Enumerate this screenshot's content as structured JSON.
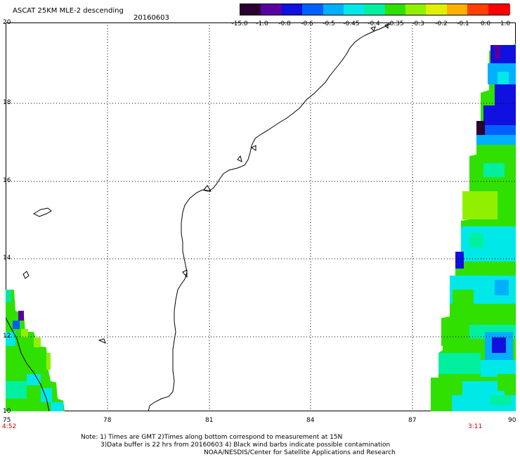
{
  "header": {
    "title": "ASCAT 25KM MLE-2 descending",
    "date": "20160603"
  },
  "colorbar": {
    "labels": [
      "-15.0",
      "-1.0",
      "-0.8",
      "-0.6",
      "-0.5",
      "-0.45",
      "-0.4",
      "-0.35",
      "-0.3",
      "-0.2",
      "-0.1",
      "0.0",
      "1.0"
    ],
    "colors": [
      "#2a0030",
      "#5a00a0",
      "#1010e0",
      "#0060ff",
      "#00b0ff",
      "#00e8e8",
      "#00f0a0",
      "#30e000",
      "#90f000",
      "#e0f000",
      "#ffb000",
      "#ff4000",
      "#ff0000"
    ]
  },
  "axes": {
    "lat_labels": [
      "20",
      "18",
      "16",
      "14",
      "12",
      "10"
    ],
    "lon_labels": [
      "75",
      "78",
      "81",
      "84",
      "87",
      "90"
    ]
  },
  "times": {
    "left": "4:52",
    "right": "3:11"
  },
  "notes": {
    "line1": "Note: 1) Times are GMT 2)Times along bottom correspond to measurement at 15N",
    "line2": "3)Data buffer is 22 hrs from 20160603 4) Black wind barbs indicate possible contamination",
    "line3": "NOAA/NESDIS/Center for Satellite Applications and Research"
  }
}
